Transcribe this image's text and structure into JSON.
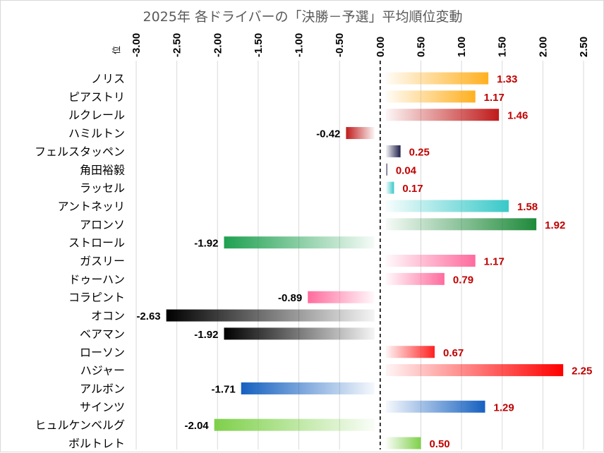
{
  "chart_data": {
    "type": "bar",
    "orientation": "horizontal",
    "title": "2025年 各ドライバーの「決勝－予選」平均順位変動",
    "xlabel": "",
    "ylabel": "",
    "axis_unit_label": "位",
    "xlim": [
      -3.0,
      2.5
    ],
    "tick_labels": [
      "-3.00",
      "-2.50",
      "-2.00",
      "-1.50",
      "-1.00",
      "-0.50",
      "0.00",
      "0.50",
      "1.00",
      "1.50",
      "2.00",
      "2.50"
    ],
    "tick_values": [
      -3.0,
      -2.5,
      -2.0,
      -1.5,
      -1.0,
      -0.5,
      0.0,
      0.5,
      1.0,
      1.5,
      2.0,
      2.5
    ],
    "grid": true,
    "zero_line": "dashed",
    "legend": "none",
    "categories": [
      "ノリス",
      "ピアストリ",
      "ルクレール",
      "ハミルトン",
      "フェルスタッペン",
      "角田裕毅",
      "ラッセル",
      "アントネッリ",
      "アロンソ",
      "ストロール",
      "ガスリー",
      "ドゥーハン",
      "コラピント",
      "オコン",
      "ベアマン",
      "ローソン",
      "ハジャー",
      "アルボン",
      "サインツ",
      "ヒュルケンベルグ",
      "ボルトレト"
    ],
    "values": [
      1.33,
      1.17,
      1.46,
      -0.42,
      0.25,
      0.04,
      0.17,
      1.58,
      1.92,
      -1.92,
      1.17,
      0.79,
      -0.89,
      -2.63,
      -1.92,
      0.67,
      2.25,
      -1.71,
      1.29,
      -2.04,
      0.5
    ],
    "value_labels": [
      "1.33",
      "1.17",
      "1.46",
      "-0.42",
      "0.25",
      "0.04",
      "0.17",
      "1.58",
      "1.92",
      "-1.92",
      "1.17",
      "0.79",
      "-0.89",
      "-2.63",
      "-1.92",
      "0.67",
      "2.25",
      "-1.71",
      "1.29",
      "-2.04",
      "0.50"
    ],
    "colors": [
      "#ffb020",
      "#ffb020",
      "#c01a1a",
      "#c01a1a",
      "#1e1e4a",
      "#1e1e4a",
      "#38c8c8",
      "#38c8c8",
      "#1e8a3a",
      "#1ea050",
      "#ff6b9e",
      "#ff6b9e",
      "#ff6b9e",
      "#000000",
      "#000000",
      "#ff2020",
      "#ff0000",
      "#1560c0",
      "#1560c0",
      "#7ed04a",
      "#7ed04a"
    ],
    "label_color_positive": "#c00000",
    "label_color_negative": "#000000"
  }
}
